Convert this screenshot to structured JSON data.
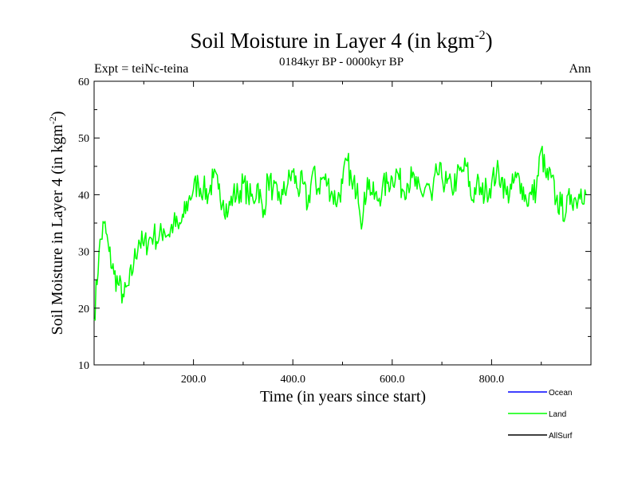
{
  "chart_data": {
    "type": "line",
    "title_main": "Soil Moisture in Layer 4 (in kgm",
    "title_sup": "-2",
    "title_close": ")",
    "subtitle": "0184kyr BP - 0000kyr BP",
    "experiment": "Expt = teiNc-teina",
    "season": "Ann",
    "xlabel": "Time (in years since start)",
    "ylabel_main": "Soil Moisture in Layer 4 (in kgm",
    "ylabel_sup": "-2",
    "ylabel_close": ")",
    "xlim": [
      0,
      1000
    ],
    "ylim": [
      10,
      60
    ],
    "x_ticks": [
      "200.0",
      "400.0",
      "600.0",
      "800.0"
    ],
    "x_tick_values": [
      200,
      400,
      600,
      800
    ],
    "y_ticks": [
      "10",
      "20",
      "30",
      "40",
      "50",
      "60"
    ],
    "y_tick_values": [
      10,
      20,
      30,
      40,
      50,
      60
    ],
    "legend": [
      {
        "name": "Ocean",
        "color": "#0000ff"
      },
      {
        "name": "Land",
        "color": "#00ff00"
      },
      {
        "name": "AllSurf",
        "color": "#000000"
      }
    ],
    "series": [
      {
        "name": "Land",
        "color": "#00ff00",
        "x_start": 0,
        "x_step": 10,
        "values": [
          18,
          30,
          35,
          30,
          26,
          24,
          22,
          24,
          28,
          32,
          31,
          32,
          33,
          32,
          34,
          33,
          35,
          34,
          36,
          39,
          41,
          42,
          41,
          40,
          43,
          41,
          39,
          37,
          40,
          40,
          42,
          40,
          39,
          42,
          36,
          43,
          41,
          39,
          40,
          42,
          44,
          41,
          42,
          38,
          44,
          41,
          43,
          42,
          40,
          39,
          42,
          46,
          41,
          42,
          35,
          43,
          40,
          39,
          41,
          42,
          43,
          44,
          41,
          42,
          43,
          41,
          40,
          42,
          39,
          44,
          43,
          42,
          41,
          43,
          44,
          45,
          39,
          42,
          40,
          41,
          42,
          44,
          43,
          40,
          41,
          43,
          42,
          39,
          40,
          41,
          48,
          43,
          43,
          39,
          38,
          37,
          40,
          39,
          41,
          40
        ]
      }
    ]
  }
}
